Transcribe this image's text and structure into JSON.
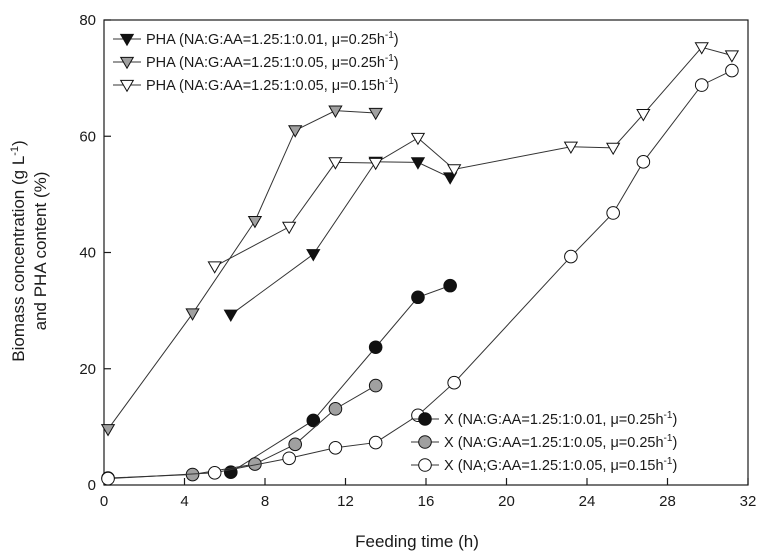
{
  "chart_data": {
    "type": "line",
    "title": "",
    "xlabel": "Feeding time (h)",
    "ylabel_line1": "Biomass concentration (g L",
    "ylabel_line1_sup": "-1",
    "ylabel_line1_end": ")",
    "ylabel_line2": "and PHA content (%)",
    "xlim": [
      0,
      32
    ],
    "ylim": [
      0,
      80
    ],
    "xticks": [
      0,
      4,
      8,
      12,
      16,
      20,
      24,
      28,
      32
    ],
    "yticks": [
      0,
      20,
      40,
      60,
      80
    ],
    "grid": false,
    "legend_placement": [
      "top-left",
      "bottom-right"
    ],
    "series": [
      {
        "name": "PHA (NA:G:AA=1.25:1:0.01, μ=0.25h",
        "name_sup": "-1",
        "name_end": ")",
        "marker": "triangle-down",
        "fill": "#111111",
        "legend": 0,
        "x": [
          6.3,
          10.4,
          13.5,
          15.6,
          17.2
        ],
        "y": [
          29.3,
          39.7,
          55.6,
          55.5,
          52.9
        ]
      },
      {
        "name": "PHA (NA:G:AA=1.25:1:0.05, μ=0.25h",
        "name_sup": "-1",
        "name_end": ")",
        "marker": "triangle-down",
        "fill": "#a0a0a0",
        "legend": 0,
        "x": [
          0.2,
          4.4,
          7.5,
          9.5,
          11.5,
          13.5
        ],
        "y": [
          9.6,
          29.5,
          45.4,
          61.0,
          64.4,
          64.0
        ]
      },
      {
        "name": "PHA (NA:G:AA=1.25:1:0.05, μ=0.15h",
        "name_sup": "-1",
        "name_end": ")",
        "marker": "triangle-down",
        "fill": "#ffffff",
        "legend": 0,
        "x": [
          5.5,
          9.2,
          11.5,
          13.5,
          15.6,
          17.4,
          23.2,
          25.3,
          26.8,
          29.7,
          31.2
        ],
        "y": [
          37.6,
          44.4,
          55.5,
          55.4,
          59.7,
          54.3,
          58.2,
          58.0,
          63.8,
          75.3,
          73.9
        ]
      },
      {
        "name": "X (NA:G:AA=1.25:1:0.01, μ=0.25h",
        "name_sup": "-1",
        "name_end": ")",
        "marker": "circle",
        "fill": "#111111",
        "legend": 1,
        "x": [
          6.3,
          10.4,
          13.5,
          15.6,
          17.2
        ],
        "y": [
          2.2,
          11.1,
          23.7,
          32.3,
          34.3
        ]
      },
      {
        "name": "X (NA:G:AA=1.25:1:0.05, μ=0.25h",
        "name_sup": "-1",
        "name_end": ")",
        "marker": "circle",
        "fill": "#a0a0a0",
        "legend": 1,
        "x": [
          0.2,
          4.4,
          7.5,
          9.5,
          11.5,
          13.5
        ],
        "y": [
          1.2,
          1.8,
          3.6,
          7.0,
          13.1,
          17.1
        ]
      },
      {
        "name": "X (NA;G:AA=1.25:1:0.05, μ=0.15h",
        "name_sup": "-1",
        "name_end": ")",
        "marker": "circle",
        "fill": "#ffffff",
        "legend": 1,
        "x": [
          0.2,
          5.5,
          9.2,
          11.5,
          13.5,
          15.6,
          17.4,
          23.2,
          25.3,
          26.8,
          29.7,
          31.2
        ],
        "y": [
          1.1,
          2.1,
          4.6,
          6.4,
          7.3,
          12.0,
          17.6,
          39.3,
          46.8,
          55.6,
          68.8,
          71.3
        ]
      }
    ]
  }
}
